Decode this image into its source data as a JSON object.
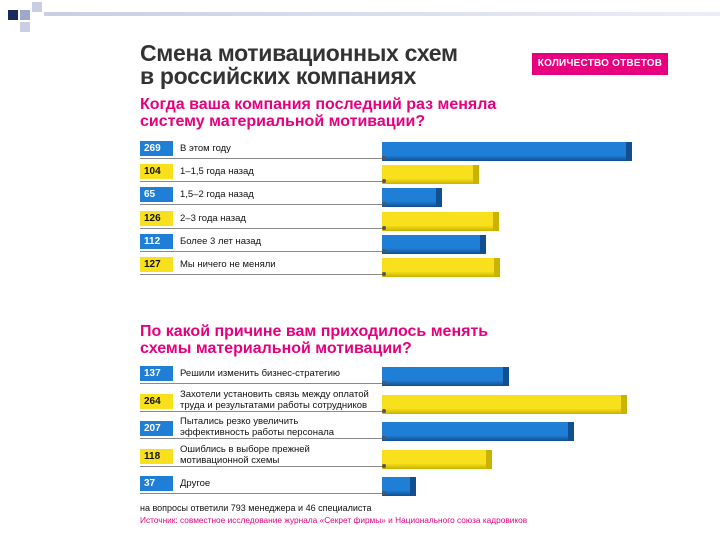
{
  "title_line1": "Смена мотивационных схем",
  "title_line2": "в российских компаниях",
  "badge": "КОЛИЧЕСТВО ОТВЕТОВ",
  "footnote": "на вопросы ответили 793 менеджера и 46 специалиста",
  "source": "Источник: совместное исследование журнала «Секрет фирмы» и Национального союза кадровиков",
  "colors": {
    "blue": "#1f7fd6",
    "yellow": "#f8e11c",
    "magenta": "#e6007e"
  },
  "chart_data": [
    {
      "type": "bar",
      "title": "Когда ваша компания последний раз меняла систему материальной мотивации?",
      "title_line1": "Когда ваша компания последний раз меняла",
      "title_line2": "систему материальной мотивации?",
      "xlim": [
        0,
        269
      ],
      "categories": [
        [
          "В этом году"
        ],
        [
          "1–1,5 года назад"
        ],
        [
          "1,5–2 года назад"
        ],
        [
          "2–3 года назад"
        ],
        [
          "Более 3 лет назад"
        ],
        [
          "Мы ничего не меняли"
        ]
      ],
      "values": [
        269,
        104,
        65,
        126,
        112,
        127
      ],
      "colors": [
        "blue",
        "yellow",
        "blue",
        "yellow",
        "blue",
        "yellow"
      ]
    },
    {
      "type": "bar",
      "title": "По какой причине вам приходилось менять схемы материальной мотивации?",
      "title_line1": "По какой причине вам приходилось менять",
      "title_line2": "схемы материальной мотивации?",
      "xlim": [
        0,
        269
      ],
      "categories": [
        [
          "Решили изменить бизнес-стратегию"
        ],
        [
          "Захотели установить связь между оплатой",
          "труда и результатами работы сотрудников"
        ],
        [
          "Пытались резко увеличить",
          "эффективность работы персонала"
        ],
        [
          "Ошиблись в выборе прежней",
          "мотивационной схемы"
        ],
        [
          "Другое"
        ]
      ],
      "values": [
        137,
        264,
        207,
        118,
        37
      ],
      "colors": [
        "blue",
        "yellow",
        "blue",
        "yellow",
        "blue"
      ]
    }
  ]
}
